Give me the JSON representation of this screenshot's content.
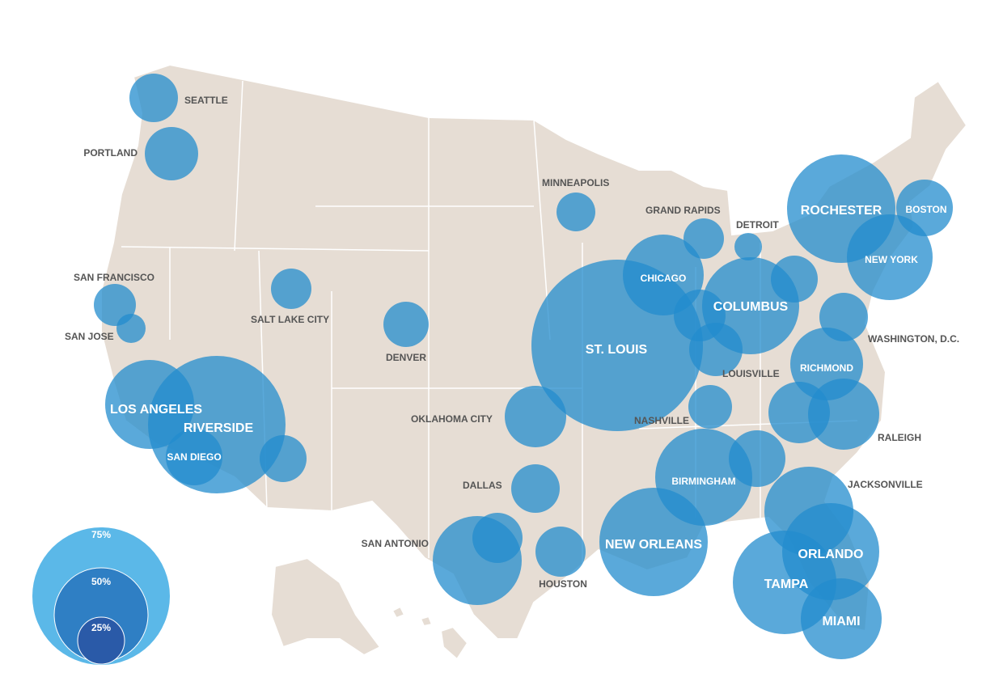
{
  "cities": [
    {
      "label": "SEATTLE"
    },
    {
      "label": "PORTLAND"
    },
    {
      "label": "MINNEAPOLIS"
    },
    {
      "label": "GRAND RAPIDS"
    },
    {
      "label": "DETROIT"
    },
    {
      "label": "ROCHESTER"
    },
    {
      "label": "BOSTON"
    },
    {
      "label": "NEW YORK"
    },
    {
      "label": "SAN FRANCISCO"
    },
    {
      "label": "SAN JOSE"
    },
    {
      "label": "SALT LAKE CITY"
    },
    {
      "label": "DENVER"
    },
    {
      "label": "CHICAGO"
    },
    {
      "label": "COLUMBUS"
    },
    {
      "label": "ST. LOUIS"
    },
    {
      "label": "LOUISVILLE"
    },
    {
      "label": "WASHINGTON, D.C."
    },
    {
      "label": "RICHMOND"
    },
    {
      "label": "NASHVILLE"
    },
    {
      "label": "OKLAHOMA CITY"
    },
    {
      "label": "RALEIGH"
    },
    {
      "label": "LOS ANGELES"
    },
    {
      "label": "RIVERSIDE"
    },
    {
      "label": "SAN DIEGO"
    },
    {
      "label": "BIRMINGHAM"
    },
    {
      "label": "JACKSONVILLE"
    },
    {
      "label": "DALLAS"
    },
    {
      "label": "SAN ANTONIO"
    },
    {
      "label": "HOUSTON"
    },
    {
      "label": "NEW ORLEANS"
    },
    {
      "label": "ORLANDO"
    },
    {
      "label": "TAMPA"
    },
    {
      "label": "MIAMI"
    }
  ],
  "legend": {
    "labels": [
      "75%",
      "50%",
      "25%"
    ]
  }
}
